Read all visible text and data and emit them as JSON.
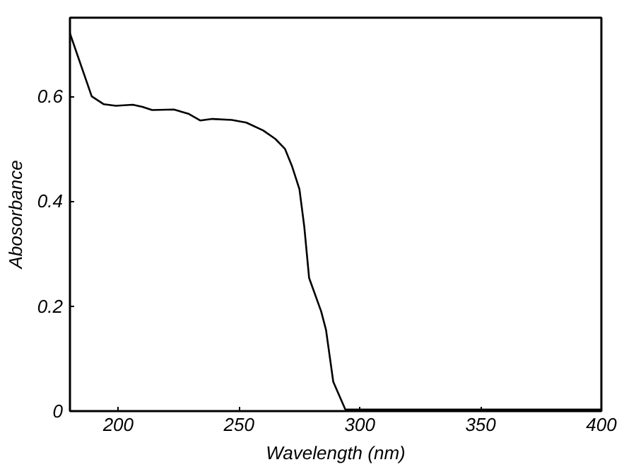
{
  "chart_data": {
    "type": "line",
    "xlabel": "Wavelength (nm)",
    "ylabel": "Abosorbance",
    "x": [
      180,
      189,
      194,
      199,
      206,
      210,
      214,
      223,
      229,
      234,
      239,
      247,
      253,
      260,
      265,
      269,
      272,
      275,
      277,
      279,
      284,
      286,
      289,
      294,
      400
    ],
    "series": [
      {
        "color": "#000000",
        "values": [
          0.72,
          0.6,
          0.585,
          0.582,
          0.584,
          0.58,
          0.574,
          0.575,
          0.567,
          0.554,
          0.557,
          0.555,
          0.55,
          0.535,
          0.519,
          0.5,
          0.466,
          0.423,
          0.352,
          0.254,
          0.19,
          0.155,
          0.056,
          0.003,
          0.003
        ]
      }
    ],
    "xlim": [
      180,
      400
    ],
    "ylim": [
      0,
      0.75
    ],
    "xticks": [
      200,
      250,
      300,
      350,
      400
    ],
    "yticks": [
      0,
      0.2,
      0.4,
      0.6
    ],
    "grid": false,
    "marker": "none",
    "line_style": "solid"
  }
}
